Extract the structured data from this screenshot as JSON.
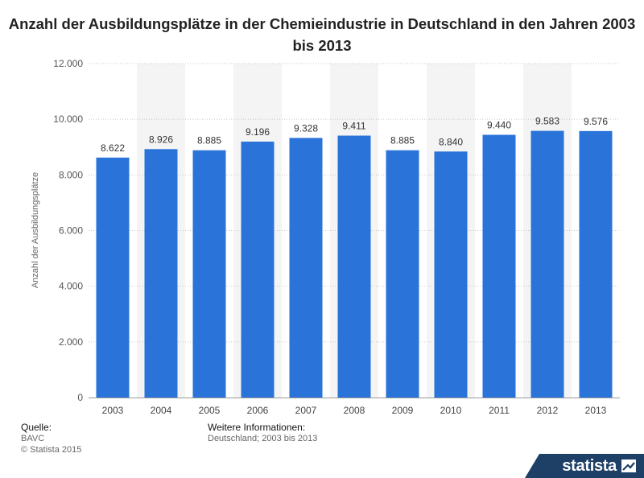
{
  "title": "Anzahl der Ausbildungsplätze in der Chemieindustrie in Deutschland in den Jahren 2003 bis 2013",
  "chart_data": {
    "type": "bar",
    "title": "Anzahl der Ausbildungsplätze in der Chemieindustrie in Deutschland in den Jahren 2003 bis 2013",
    "categories": [
      "2003",
      "2004",
      "2005",
      "2006",
      "2007",
      "2008",
      "2009",
      "2010",
      "2011",
      "2012",
      "2013"
    ],
    "values": [
      8622,
      8926,
      8885,
      9196,
      9328,
      9411,
      8885,
      8840,
      9440,
      9583,
      9576
    ],
    "value_labels": [
      "8.622",
      "8.926",
      "8.885",
      "9.196",
      "9.328",
      "9.411",
      "8.885",
      "8.840",
      "9.440",
      "9.583",
      "9.576"
    ],
    "xlabel": "",
    "ylabel": "Anzahl der Ausbildungsplätze",
    "ylim": [
      0,
      12000
    ],
    "yticks": [
      0,
      2000,
      4000,
      6000,
      8000,
      10000,
      12000
    ],
    "ytick_labels": [
      "0",
      "2.000",
      "4.000",
      "6.000",
      "8.000",
      "10.000",
      "12.000"
    ],
    "grid": true,
    "bar_color": "#2a74d9"
  },
  "footer": {
    "source_heading": "Quelle:",
    "source_text": "BAVC",
    "copyright": "© Statista 2015",
    "info_heading": "Weitere Informationen:",
    "info_text": "Deutschland; 2003 bis 2013"
  },
  "brand": {
    "name": "statista"
  }
}
